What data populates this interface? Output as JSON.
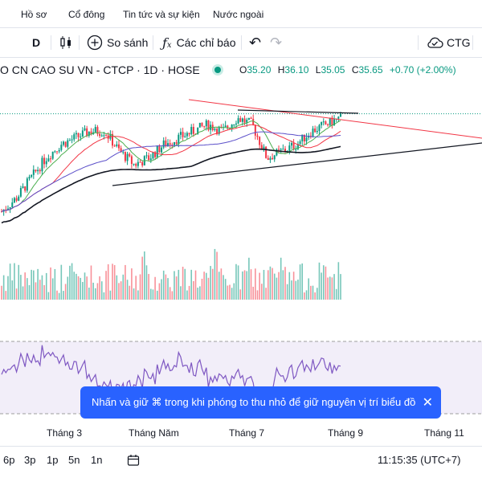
{
  "nav": {
    "items": [
      "Hồ sơ",
      "Cổ đông",
      "Tin tức và sự kiện",
      "Nước ngoài"
    ]
  },
  "toolbar": {
    "interval": "D",
    "compare": "So sánh",
    "indicators": "Các chỉ báo",
    "symbol_short": "CTG"
  },
  "legend": {
    "symbol": "O CN CAO SU VN - CTCP · 1D · HOSE",
    "open_label": "O",
    "open": "35.20",
    "high_label": "H",
    "high": "36.10",
    "low_label": "L",
    "low": "35.05",
    "close_label": "C",
    "close": "35.65",
    "change": "+0.70 (+2.00%)"
  },
  "x_axis": {
    "labels": [
      "Tháng 3",
      "Tháng Năm",
      "Tháng 7",
      "Tháng 9",
      "Tháng 11"
    ]
  },
  "bottom": {
    "ranges": [
      "6p",
      "3p",
      "1p",
      "5n",
      "1n"
    ],
    "time": "11:15:35 (UTC+7)"
  },
  "toast": {
    "text": "Nhấn và giữ ⌘ trong khi phóng to thu nhỏ để giữ nguyên vị trí biểu đồ"
  },
  "colors": {
    "up": "#089981",
    "down": "#f23645",
    "accent": "#2962ff",
    "ma_green": "#4caf50",
    "ma_red": "#f23645",
    "ma_blue": "#5b4fc9",
    "rsi": "#7e57c2"
  },
  "icons": {
    "candles": "candlestick-icon",
    "compare": "plus-circle-icon",
    "indicators": "fx-icon",
    "undo": "undo-icon",
    "redo": "redo-icon",
    "cloud": "cloud-check-icon",
    "calendar": "date-range-icon",
    "close": "close-icon"
  },
  "chart_data": {
    "type": "candlestick",
    "symbol": "CN CAO SU VN - CTCP",
    "interval": "1D",
    "exchange": "HOSE",
    "last": {
      "open": 35.2,
      "high": 36.1,
      "low": 35.05,
      "close": 35.65,
      "change": 0.7,
      "change_pct": 2.0
    },
    "x_tick_labels": [
      "Tháng 3",
      "Tháng Năm",
      "Tháng 7",
      "Tháng 9",
      "Tháng 11"
    ],
    "trend": [
      22,
      24,
      27,
      30,
      32,
      33,
      34,
      34,
      31,
      29,
      30,
      32,
      33,
      34,
      35,
      34,
      36,
      35,
      30,
      31,
      32,
      34,
      35,
      36
    ],
    "panes": [
      "price",
      "volume",
      "rsi"
    ]
  }
}
